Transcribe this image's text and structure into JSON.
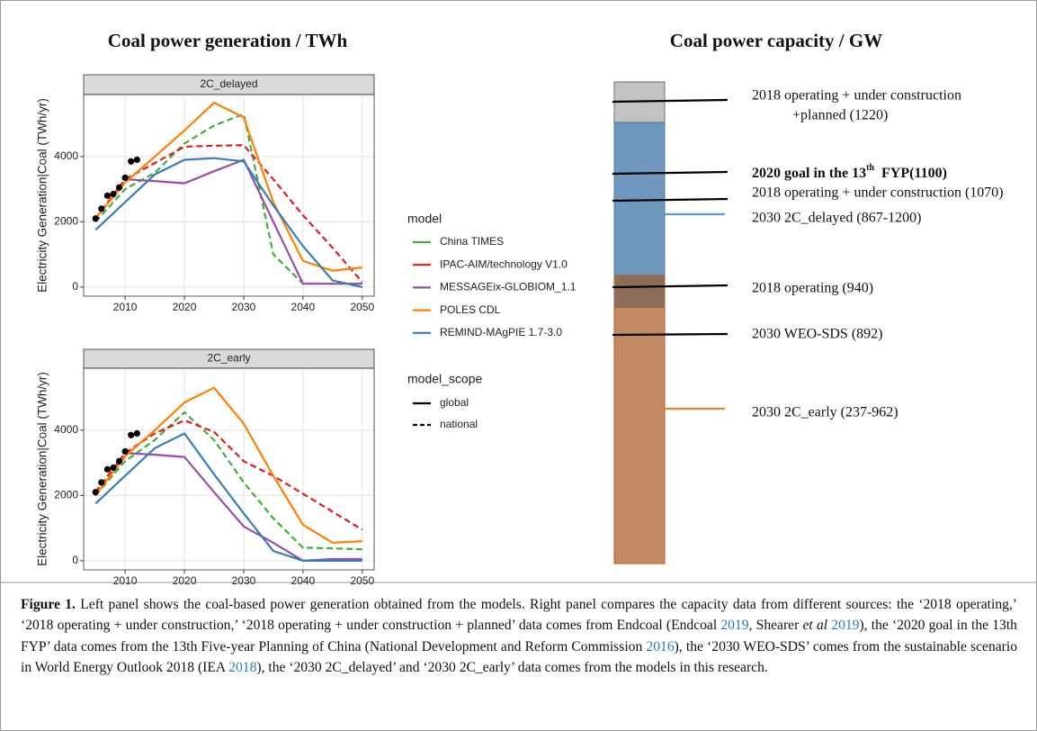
{
  "left_title": "Coal power generation / TWh",
  "chart_data": [
    {
      "type": "line",
      "facet": "2C_delayed",
      "ylabel": "Electricity Generation|Coal (TWh/yr)",
      "x": [
        2005,
        2010,
        2015,
        2020,
        2025,
        2030,
        2035,
        2040,
        2045,
        2050
      ],
      "series": [
        {
          "name": "China TIMES",
          "color": "#3fae3a",
          "scope": "national",
          "values": [
            2000,
            3000,
            3500,
            4400,
            4950,
            5300,
            1000,
            100,
            100,
            100
          ]
        },
        {
          "name": "IPAC-AIM/technology V1.0",
          "color": "#e41a1c",
          "scope": "national",
          "values": [
            2100,
            3300,
            3800,
            4300,
            4330,
            4350,
            3300,
            2200,
            1200,
            150
          ]
        },
        {
          "name": "MESSAGEix-GLOBIOM_1.1",
          "color": "#984ea3",
          "scope": "global",
          "values": [
            null,
            3300,
            3250,
            3180,
            3550,
            3900,
            2000,
            100,
            100,
            100
          ]
        },
        {
          "name": "POLES CDL",
          "color": "#ff7f00",
          "scope": "global",
          "values": [
            2100,
            3200,
            4000,
            4800,
            5650,
            5200,
            2600,
            800,
            500,
            600
          ]
        },
        {
          "name": "REMIND-MAgPIE 1.7-3.0",
          "color": "#377eb8",
          "scope": "global",
          "values": [
            1750,
            2600,
            3450,
            3900,
            3950,
            3850,
            2500,
            1250,
            200,
            0
          ]
        }
      ],
      "points": {
        "color": "#000000",
        "x": [
          2005,
          2006,
          2007,
          2008,
          2009,
          2010,
          2011,
          2012
        ],
        "values": [
          2100,
          2400,
          2800,
          2850,
          3050,
          3350,
          3850,
          3900
        ]
      },
      "xlim": [
        2003,
        2052
      ],
      "ylim": [
        -280,
        5900
      ],
      "xticks": [
        2010,
        2020,
        2030,
        2040,
        2050
      ],
      "yticks": [
        0,
        2000,
        4000
      ],
      "grid": true
    },
    {
      "type": "line",
      "facet": "2C_early",
      "ylabel": "Electricity Generation|Coal (TWh/yr)",
      "x": [
        2005,
        2010,
        2015,
        2020,
        2025,
        2030,
        2035,
        2040,
        2045,
        2050
      ],
      "series": [
        {
          "name": "China TIMES",
          "color": "#3fae3a",
          "scope": "national",
          "values": [
            2000,
            3050,
            3700,
            4550,
            3700,
            2400,
            1300,
            400,
            380,
            350
          ]
        },
        {
          "name": "IPAC-AIM/technology V1.0",
          "color": "#e41a1c",
          "scope": "national",
          "values": [
            2100,
            3300,
            3900,
            4300,
            3950,
            3050,
            2600,
            2050,
            1500,
            950
          ]
        },
        {
          "name": "MESSAGEix-GLOBIOM_1.1",
          "color": "#984ea3",
          "scope": "global",
          "values": [
            null,
            3300,
            3250,
            3180,
            2100,
            1050,
            550,
            0,
            50,
            50
          ]
        },
        {
          "name": "POLES CDL",
          "color": "#ff7f00",
          "scope": "global",
          "values": [
            2000,
            3200,
            4000,
            4850,
            5300,
            4200,
            2600,
            1100,
            550,
            600
          ]
        },
        {
          "name": "REMIND-MAgPIE 1.7-3.0",
          "color": "#377eb8",
          "scope": "global",
          "values": [
            1750,
            2600,
            3450,
            3900,
            2650,
            1450,
            300,
            0,
            0,
            0
          ]
        }
      ],
      "points": {
        "color": "#000000",
        "x": [
          2005,
          2006,
          2007,
          2008,
          2009,
          2010,
          2011,
          2012
        ],
        "values": [
          2100,
          2400,
          2800,
          2850,
          3050,
          3350,
          3850,
          3900
        ]
      },
      "xlim": [
        2003,
        2052
      ],
      "ylim": [
        -280,
        5900
      ],
      "xticks": [
        2010,
        2020,
        2030,
        2040,
        2050
      ],
      "yticks": [
        0,
        2000,
        4000
      ],
      "grid": true
    }
  ],
  "legend": {
    "model_title": "model",
    "scope_title": "model_scope",
    "scope": [
      {
        "name": "global",
        "dash": "solid"
      },
      {
        "name": "national",
        "dash": "dashed"
      }
    ]
  },
  "capacity": {
    "title": "Coal power capacity / GW",
    "labels": [
      [
        "2018 operating + under construction",
        "+planned (1220)"
      ],
      [
        "2020 goal in the 13",
        "th",
        "  FYP(1100)"
      ],
      [
        "2018 operating + under construction (1070)"
      ],
      [
        "2030 2C_delayed (867-1200)"
      ],
      [
        "2018 operating (940)"
      ],
      [
        "2030 WEO-SDS (892)"
      ],
      [
        "2030 2C_early (237-962)"
      ]
    ]
  },
  "caption": [
    {
      "text": "Figure 1.",
      "format": "bold"
    },
    {
      "text": " Left panel shows the coal-based power generation obtained from the models. Right panel compares the capacity data from different sources: the ‘2018 operating,’ ‘2018 operating + under construction,’ ‘2018 operating + under construction + planned’ data comes from Endcoal (Endcoal "
    },
    {
      "text": "2019",
      "format": "link"
    },
    {
      "text": ", Shearer "
    },
    {
      "text": "et al",
      "format": "italic"
    },
    {
      "text": " 2019",
      "format": "link"
    },
    {
      "text": "), the ‘2020 goal in the 13th FYP’ data comes from the 13th Five-year Planning of China (National Development and Reform Commission "
    },
    {
      "text": "2016",
      "format": "link"
    },
    {
      "text": "), the ‘2030 WEO-SDS’ comes from the sustainable scenario in World Energy Outlook 2018 (IEA "
    },
    {
      "text": "2018",
      "format": "link"
    },
    {
      "text": "), the ‘2030 2C_delayed’ and ‘2030 2C_early’ data comes from the models in this research."
    }
  ]
}
